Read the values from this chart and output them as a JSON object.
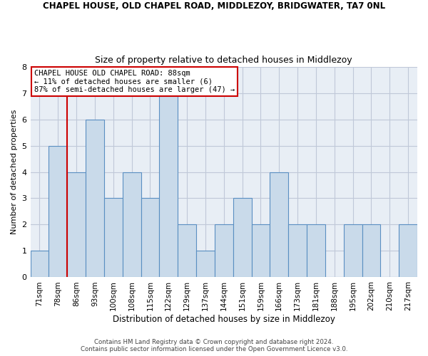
{
  "title1": "CHAPEL HOUSE, OLD CHAPEL ROAD, MIDDLEZOY, BRIDGWATER, TA7 0NL",
  "title2": "Size of property relative to detached houses in Middlezoy",
  "xlabel": "Distribution of detached houses by size in Middlezoy",
  "ylabel": "Number of detached properties",
  "bin_labels": [
    "71sqm",
    "78sqm",
    "86sqm",
    "93sqm",
    "100sqm",
    "108sqm",
    "115sqm",
    "122sqm",
    "129sqm",
    "137sqm",
    "144sqm",
    "151sqm",
    "159sqm",
    "166sqm",
    "173sqm",
    "181sqm",
    "188sqm",
    "195sqm",
    "202sqm",
    "210sqm",
    "217sqm"
  ],
  "bar_values": [
    1,
    5,
    4,
    6,
    3,
    4,
    3,
    7,
    2,
    1,
    2,
    3,
    2,
    4,
    2,
    2,
    0,
    2,
    2,
    0,
    2
  ],
  "bar_color": "#c9daea",
  "bar_edge_color": "#5a8fc2",
  "grid_color": "#c0c8d8",
  "background_color": "#e8eef5",
  "vline_x_index": 2,
  "vline_color": "#cc0000",
  "annotation_box_text": "CHAPEL HOUSE OLD CHAPEL ROAD: 88sqm\n← 11% of detached houses are smaller (6)\n87% of semi-detached houses are larger (47) →",
  "footer_text": "Contains HM Land Registry data © Crown copyright and database right 2024.\nContains public sector information licensed under the Open Government Licence v3.0.",
  "ylim": [
    0,
    8
  ],
  "yticks": [
    0,
    1,
    2,
    3,
    4,
    5,
    6,
    7,
    8
  ]
}
